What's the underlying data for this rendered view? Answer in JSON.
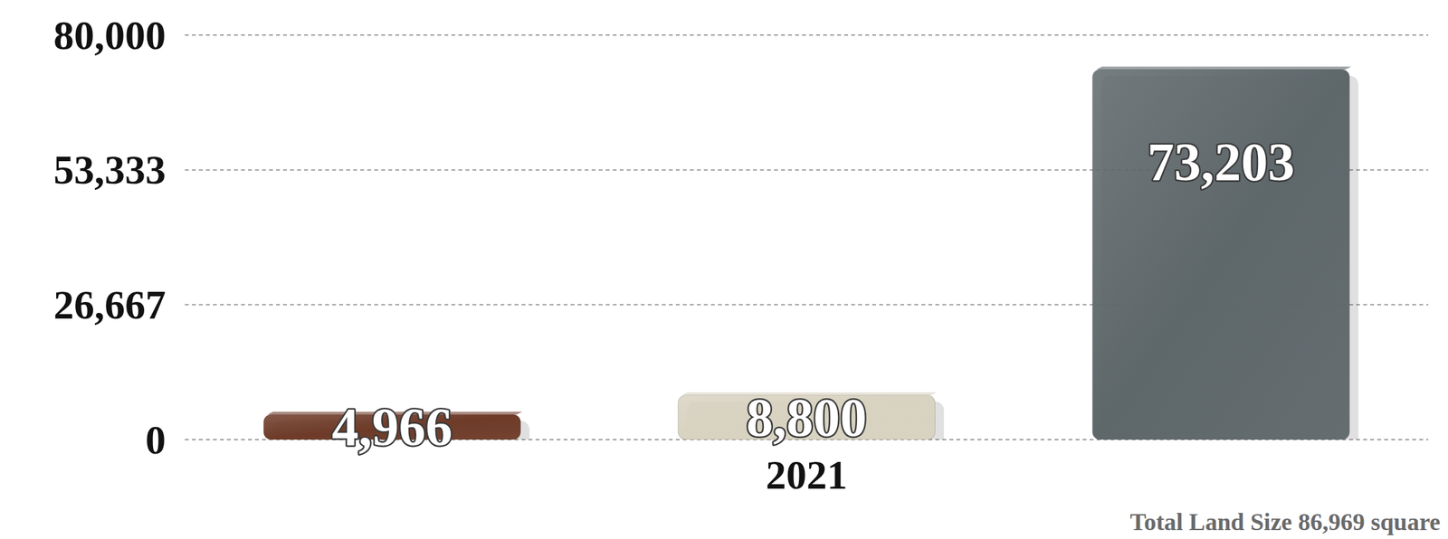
{
  "chart_data": {
    "type": "bar",
    "categories": [
      null,
      "2021",
      null
    ],
    "values": [
      4966,
      8800,
      73203
    ],
    "value_labels": [
      "4,966",
      "8,800",
      "73,203"
    ],
    "colors": [
      "#6e3b28",
      "#d8d2c0",
      "#5e676a"
    ],
    "ylim": [
      0,
      80000
    ],
    "yticks": [
      0,
      {
        "value": 26667,
        "label": "26,667"
      },
      {
        "value": 53333,
        "label": "53,333"
      },
      {
        "value": 80000,
        "label": "80,000"
      }
    ],
    "grid": true,
    "data_labels": true,
    "annotations": [
      "Total Land Size 86,969 square"
    ]
  }
}
